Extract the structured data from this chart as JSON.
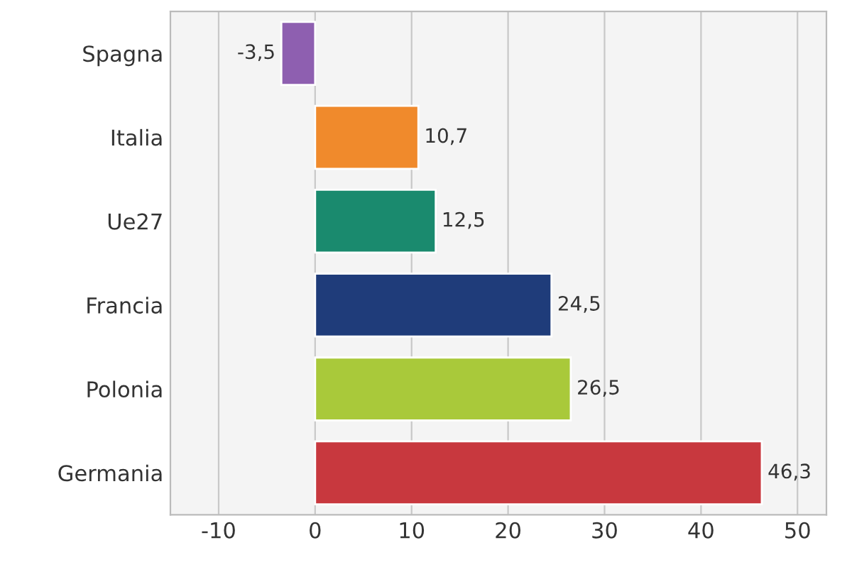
{
  "chart_data": {
    "type": "bar",
    "orientation": "horizontal",
    "categories": [
      "Spagna",
      "Italia",
      "Ue27",
      "Francia",
      "Polonia",
      "Germania"
    ],
    "values": [
      -3.5,
      10.7,
      12.5,
      24.5,
      26.5,
      46.3
    ],
    "value_labels": [
      "-3,5",
      "10,7",
      "12,5",
      "24,5",
      "26,5",
      "46,3"
    ],
    "colors": [
      "#8e5fb0",
      "#f08a2c",
      "#1a8a6e",
      "#1f3c7a",
      "#a9c93a",
      "#c8383e"
    ],
    "xlim": [
      -15,
      53
    ],
    "xticks": [
      -10,
      0,
      10,
      20,
      30,
      40,
      50
    ],
    "grid": "x",
    "legend": false
  }
}
